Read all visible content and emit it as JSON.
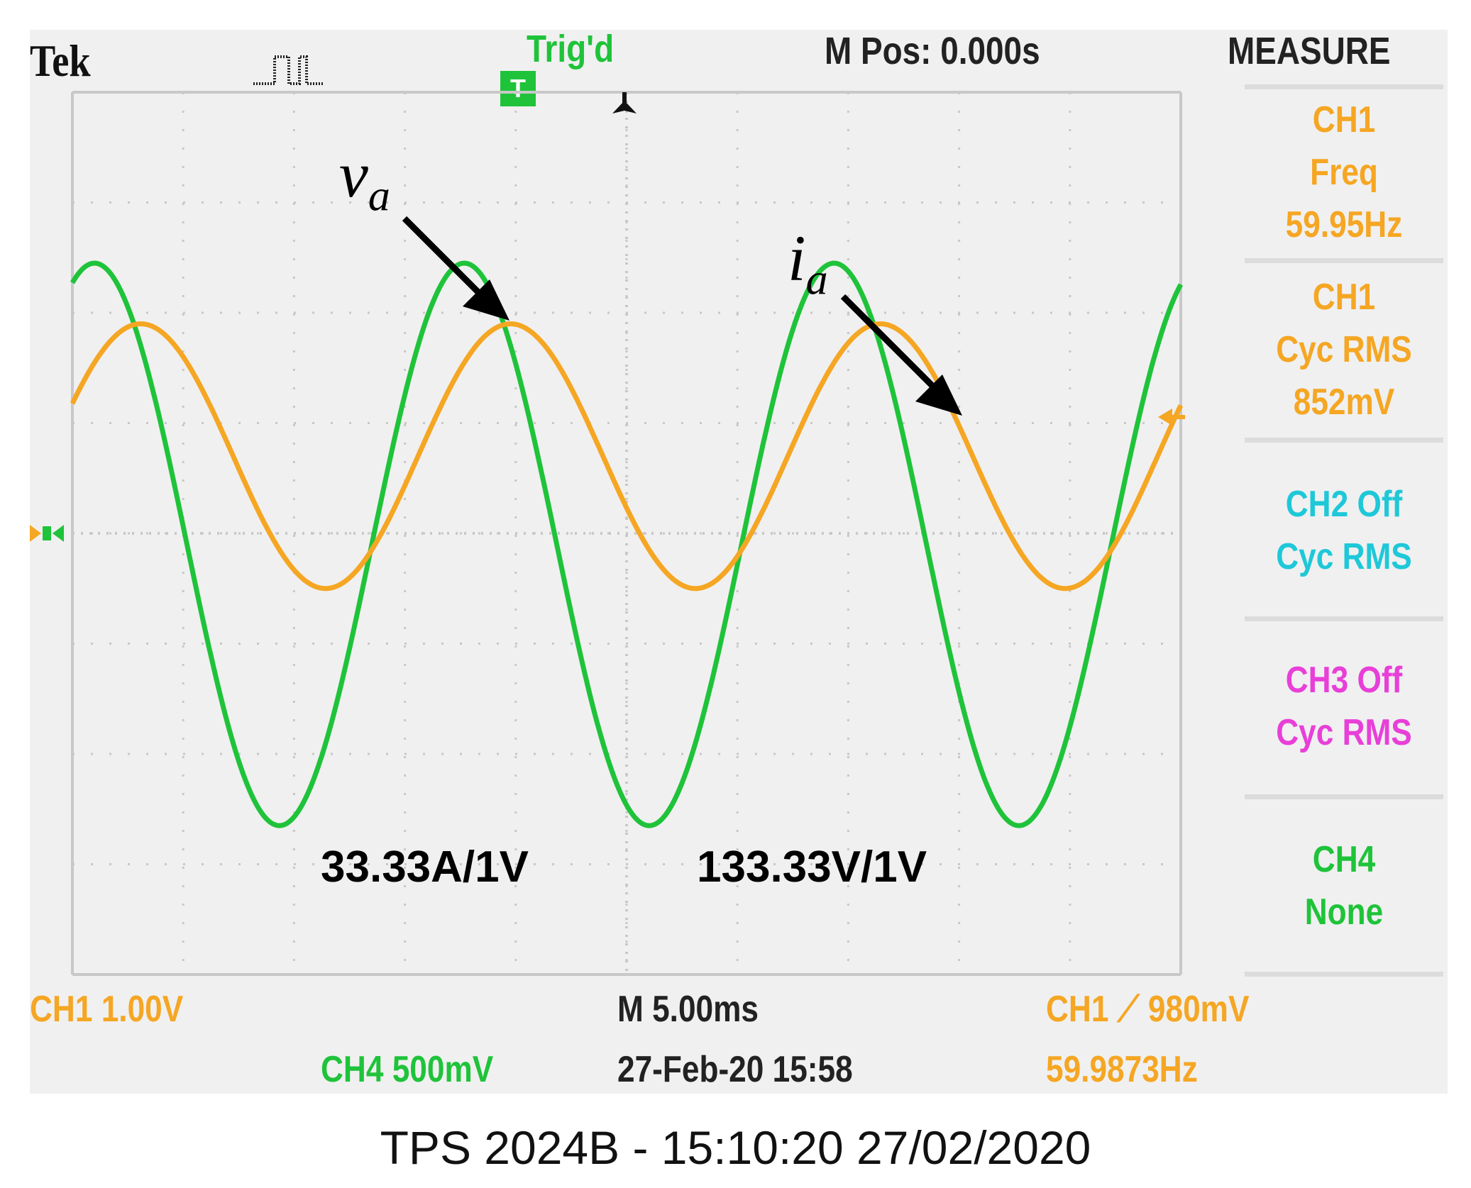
{
  "header": {
    "brand": "Tek",
    "trigger_badge": "T",
    "trigger_state": "Trig'd",
    "m_pos": "M Pos: 0.000s",
    "menu_title": "MEASURE"
  },
  "measure_menu": [
    {
      "lines": [
        "CH1",
        "Freq",
        "59.95Hz"
      ],
      "color": "#f5a623"
    },
    {
      "lines": [
        "CH1",
        "Cyc RMS",
        "852mV"
      ],
      "color": "#f5a623"
    },
    {
      "lines": [
        "CH2 Off",
        "Cyc RMS"
      ],
      "color": "#1ec8d8"
    },
    {
      "lines": [
        "CH3 Off",
        "Cyc RMS"
      ],
      "color": "#e83fd8"
    },
    {
      "lines": [
        "CH4",
        "None"
      ],
      "color": "#1fc33a"
    }
  ],
  "footer": {
    "ch1_scale": "CH1  1.00V",
    "ch4_scale": "CH4  500mV",
    "timebase": "M 5.00ms",
    "datetime": "27-Feb-20 15:58",
    "trigger_level": "CH1 ⟋ 980mV",
    "trigger_freq": "59.9873Hz"
  },
  "annotations": {
    "va_letter": "v",
    "va_sub": "a",
    "ia_letter": "i",
    "ia_sub": "a",
    "scale_left": "33.33A/1V",
    "scale_right": "133.33V/1V"
  },
  "caption": "TPS 2024B - 15:10:20   27/02/2020",
  "colors": {
    "voltage_trace": "#1fc33a",
    "current_trace": "#f5a623",
    "graticule": "#c8c8c8",
    "screen_bg": "#f0f0f0"
  },
  "chart_data": {
    "type": "line",
    "x_unit": "ms",
    "xlim": [
      -25,
      25
    ],
    "ylim": [
      -4,
      4
    ],
    "grid": true,
    "series": [
      {
        "name": "v_a",
        "color": "#1fc33a",
        "amplitude_div": 2.55,
        "offset_div": -0.1,
        "frequency_hz": 59.95,
        "phase_deg": 248
      },
      {
        "name": "i_a",
        "color": "#f5a623",
        "amplitude_div": 1.2,
        "offset_div": 0.7,
        "frequency_hz": 59.95,
        "phase_deg": 203
      }
    ]
  }
}
